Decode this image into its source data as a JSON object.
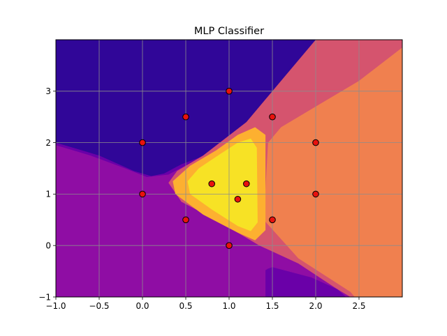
{
  "chart_data": {
    "type": "contour",
    "title": "MLP Classifier",
    "xlabel": "",
    "ylabel": "",
    "xlim": [
      -1.0,
      3.0
    ],
    "ylim": [
      -1.0,
      4.0
    ],
    "x_ticks": [
      -1.0,
      -0.5,
      0.0,
      0.5,
      1.0,
      1.5,
      2.0,
      2.5
    ],
    "x_tick_labels": [
      "−1.0",
      "−0.5",
      "0.0",
      "0.5",
      "1.0",
      "1.5",
      "2.0",
      "2.5"
    ],
    "y_ticks": [
      -1,
      0,
      1,
      2,
      3
    ],
    "y_tick_labels": [
      "−1",
      "0",
      "1",
      "2",
      "3"
    ],
    "grid": true,
    "colormap": "plasma",
    "region_colors": {
      "dark_blue": "#300698",
      "purple": "#6a00a8",
      "magenta_purple": "#8f0da4",
      "pink": "#d5546e",
      "orange": "#f0804f",
      "light_orange": "#fdb030",
      "yellow": "#f7e225"
    },
    "points": {
      "marker_color": "#e8120e",
      "edge_color": "#000000",
      "x": [
        0.0,
        0.0,
        0.5,
        0.5,
        1.0,
        1.0,
        0.8,
        1.2,
        1.1,
        1.5,
        1.5,
        2.0,
        2.0
      ],
      "y": [
        2.0,
        1.0,
        2.5,
        0.5,
        3.0,
        0.0,
        1.2,
        1.2,
        0.9,
        2.5,
        0.5,
        2.0,
        1.0
      ]
    }
  }
}
